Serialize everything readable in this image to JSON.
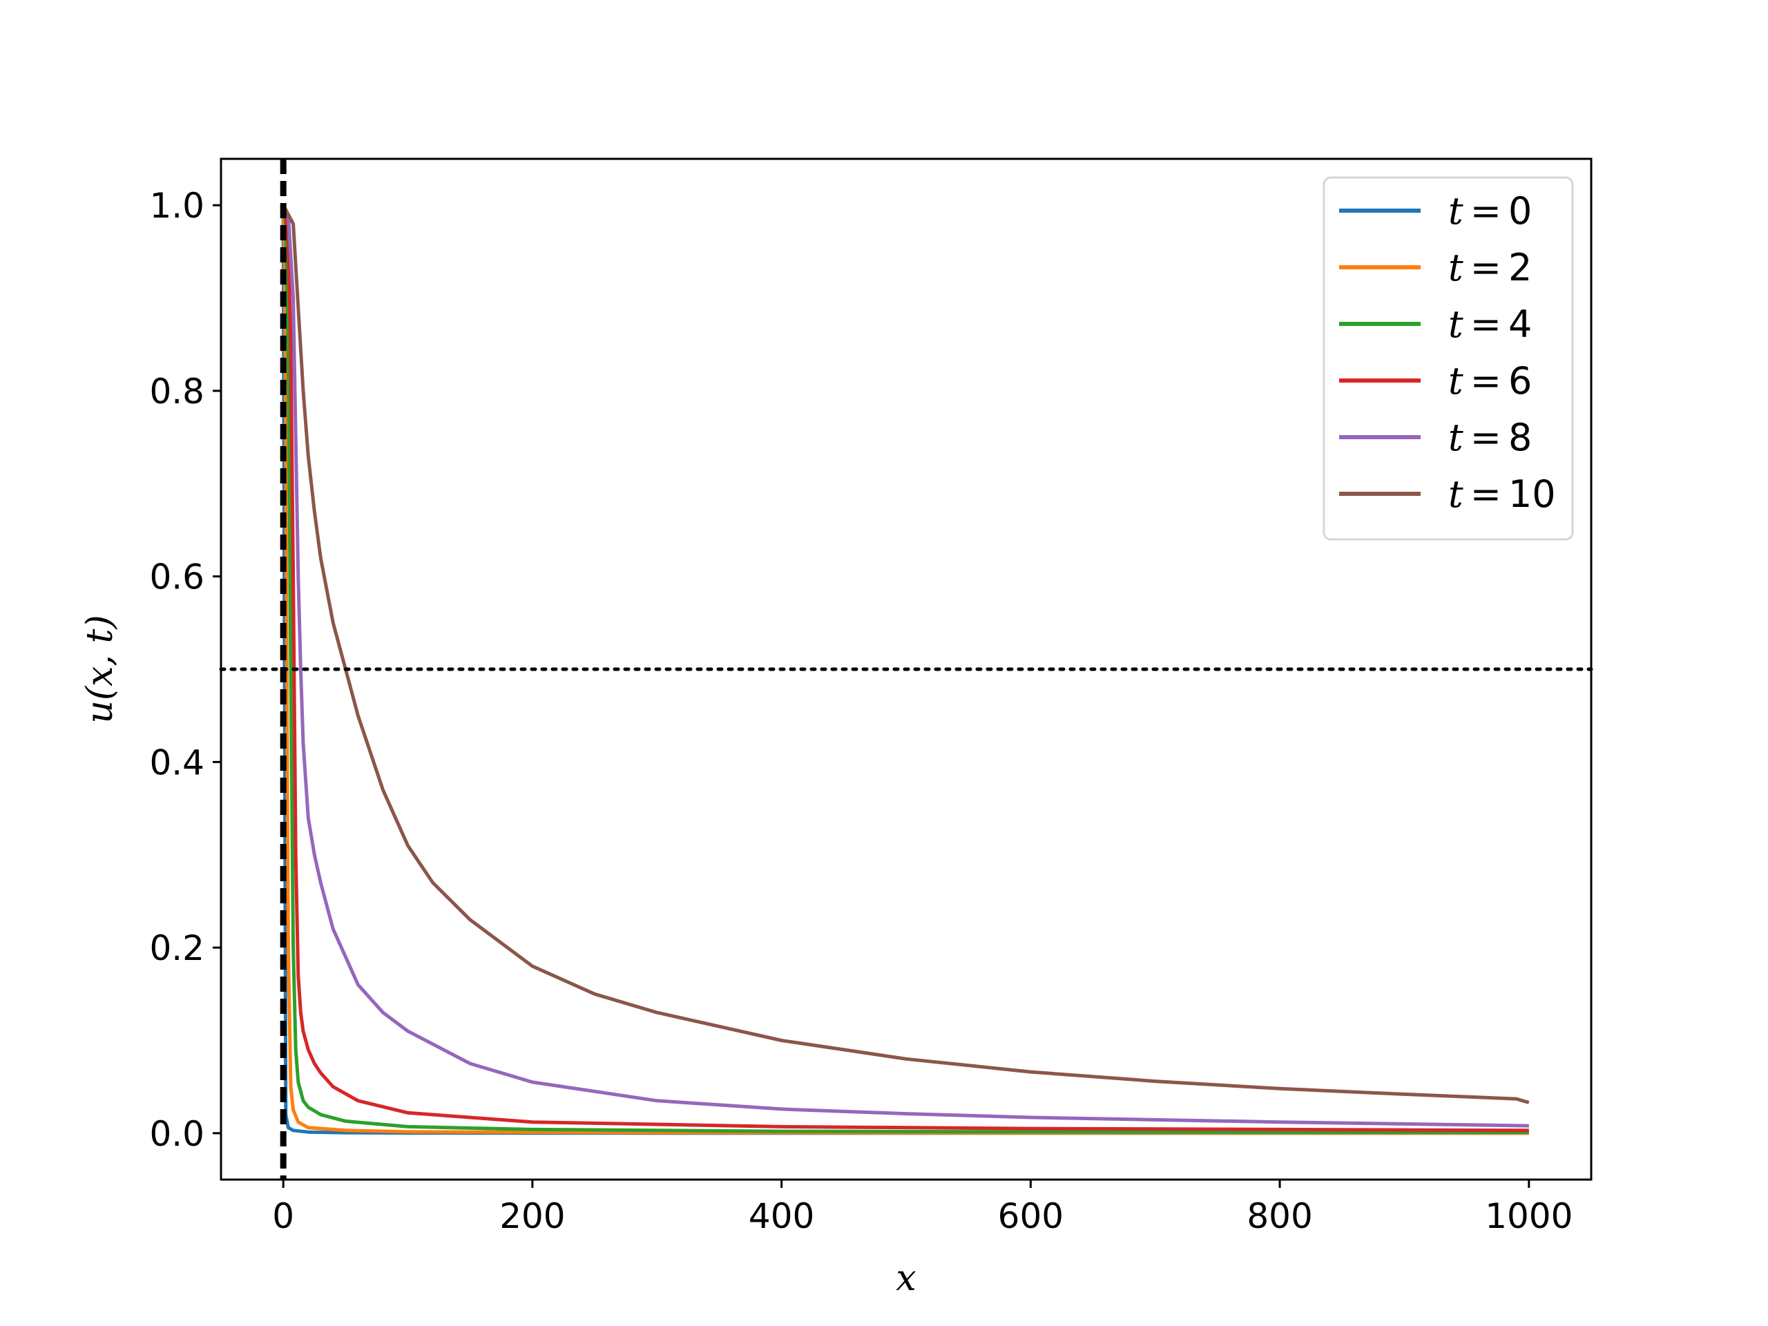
{
  "chart_data": {
    "type": "line",
    "xlabel": "x",
    "ylabel": "u(x, t)",
    "xlim": [
      -50,
      1050
    ],
    "ylim": [
      -0.05,
      1.05
    ],
    "xticks": [
      0,
      200,
      400,
      600,
      800,
      1000
    ],
    "xtick_labels": [
      "0",
      "200",
      "400",
      "600",
      "800",
      "1000"
    ],
    "yticks": [
      0.0,
      0.2,
      0.4,
      0.6,
      0.8,
      1.0
    ],
    "ytick_labels": [
      "0.0",
      "0.2",
      "0.4",
      "0.6",
      "0.8",
      "1.0"
    ],
    "legend_position": "top-right",
    "grid": false,
    "reference_lines": [
      {
        "orientation": "vertical",
        "value": 0,
        "style": "dashed",
        "color": "#000000"
      },
      {
        "orientation": "horizontal",
        "value": 0.5,
        "style": "dotted",
        "color": "#000000"
      }
    ],
    "series": [
      {
        "name": "t = 0",
        "t_symbol": "t",
        "t_value": "0",
        "color": "#1f77b4",
        "x": [
          0,
          1,
          2,
          4,
          8,
          20,
          50,
          100,
          300,
          600,
          1000
        ],
        "y": [
          1.0,
          0.5,
          0.02,
          0.006,
          0.003,
          0.0012,
          0.0005,
          0.0002,
          0.0001,
          0.0,
          0.0
        ]
      },
      {
        "name": "t = 2",
        "t_symbol": "t",
        "t_value": "2",
        "color": "#ff7f0e",
        "x": [
          0,
          1,
          2,
          3,
          4,
          6,
          8,
          12,
          20,
          50,
          100,
          300,
          600,
          1000
        ],
        "y": [
          1.0,
          0.95,
          0.75,
          0.45,
          0.2,
          0.05,
          0.025,
          0.012,
          0.006,
          0.003,
          0.0015,
          0.0006,
          0.0003,
          0.0002
        ]
      },
      {
        "name": "t = 4",
        "t_symbol": "t",
        "t_value": "4",
        "color": "#2ca02c",
        "x": [
          0,
          2,
          4,
          6,
          8,
          10,
          12,
          16,
          20,
          30,
          50,
          100,
          200,
          400,
          600,
          800,
          1000
        ],
        "y": [
          1.0,
          0.98,
          0.85,
          0.5,
          0.2,
          0.09,
          0.055,
          0.035,
          0.028,
          0.02,
          0.013,
          0.007,
          0.004,
          0.002,
          0.0015,
          0.001,
          0.001
        ]
      },
      {
        "name": "t = 6",
        "t_symbol": "t",
        "t_value": "6",
        "color": "#d62728",
        "x": [
          0,
          2,
          4,
          6,
          8,
          10,
          12,
          14,
          16,
          20,
          25,
          30,
          40,
          60,
          100,
          200,
          400,
          600,
          800,
          1000
        ],
        "y": [
          1.0,
          0.99,
          0.96,
          0.85,
          0.6,
          0.3,
          0.17,
          0.13,
          0.11,
          0.09,
          0.075,
          0.065,
          0.05,
          0.035,
          0.022,
          0.012,
          0.007,
          0.005,
          0.004,
          0.003
        ]
      },
      {
        "name": "t = 8",
        "t_symbol": "t",
        "t_value": "8",
        "color": "#9467bd",
        "x": [
          0,
          4,
          8,
          10,
          12,
          14,
          16,
          20,
          25,
          30,
          40,
          50,
          60,
          80,
          100,
          150,
          200,
          300,
          400,
          500,
          600,
          800,
          1000
        ],
        "y": [
          1.0,
          0.99,
          0.9,
          0.75,
          0.6,
          0.5,
          0.42,
          0.34,
          0.3,
          0.27,
          0.22,
          0.19,
          0.16,
          0.13,
          0.11,
          0.075,
          0.055,
          0.035,
          0.026,
          0.021,
          0.017,
          0.012,
          0.008
        ]
      },
      {
        "name": "t = 10",
        "t_symbol": "t",
        "t_value": "10",
        "color": "#8c564b",
        "x": [
          0,
          8,
          16,
          20,
          25,
          30,
          40,
          50,
          60,
          80,
          100,
          120,
          150,
          200,
          250,
          300,
          400,
          500,
          600,
          700,
          800,
          900,
          990,
          1000
        ],
        "y": [
          1.0,
          0.98,
          0.8,
          0.73,
          0.67,
          0.62,
          0.55,
          0.5,
          0.45,
          0.37,
          0.31,
          0.27,
          0.23,
          0.18,
          0.15,
          0.13,
          0.1,
          0.08,
          0.066,
          0.056,
          0.048,
          0.042,
          0.037,
          0.033
        ]
      }
    ]
  }
}
